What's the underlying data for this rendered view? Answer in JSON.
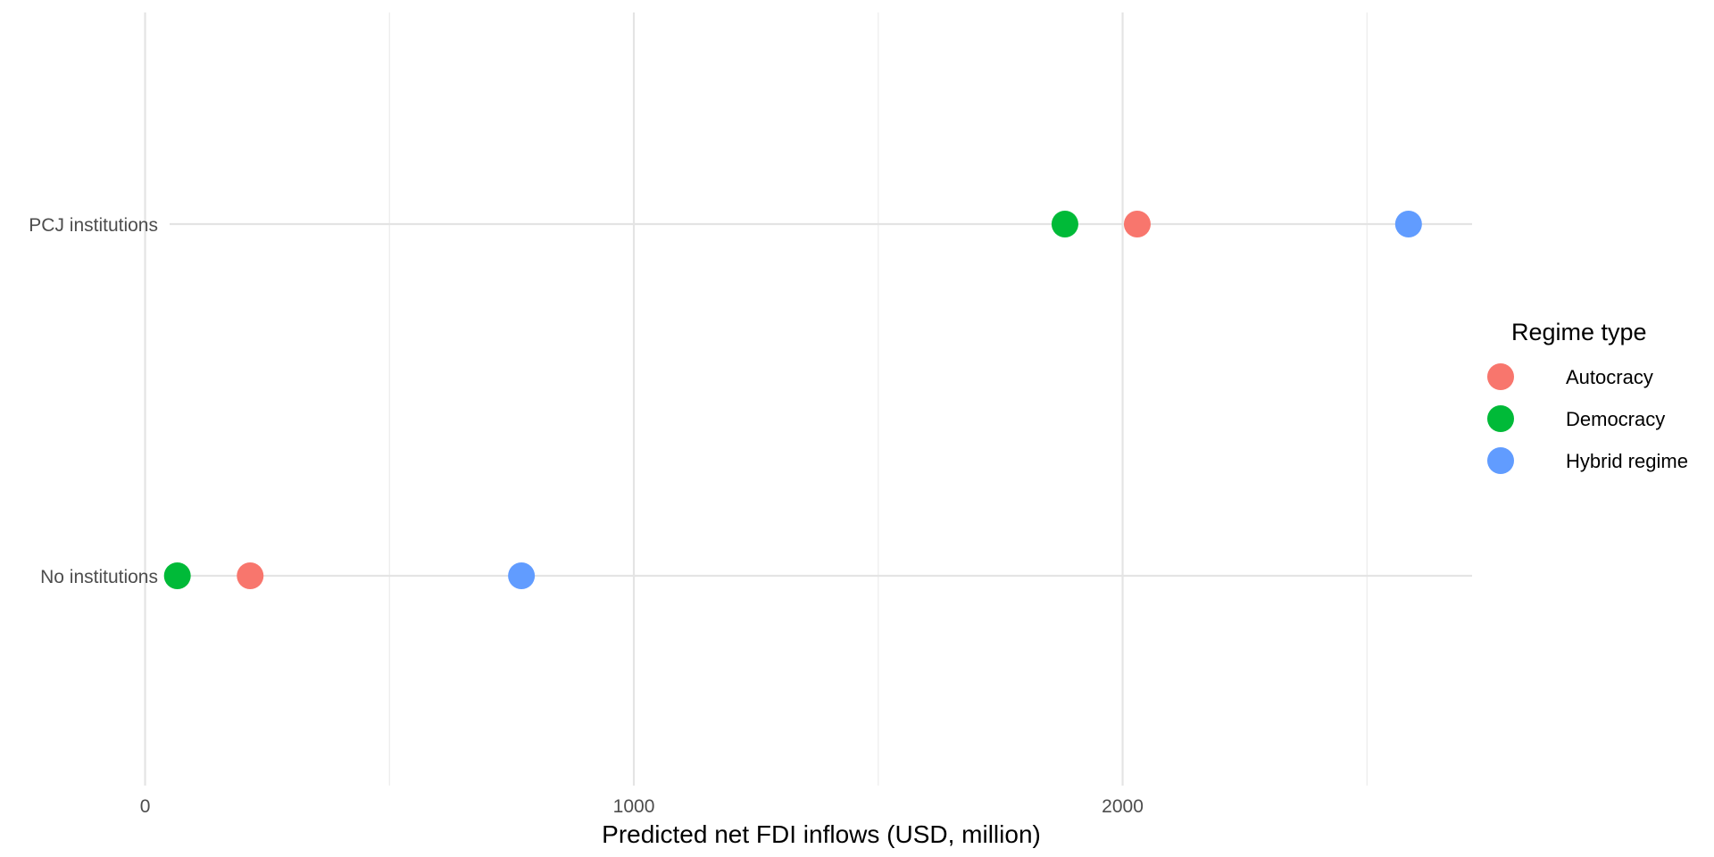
{
  "chart_data": {
    "type": "scatter",
    "title": "",
    "xlabel": "Predicted net FDI inflows (USD, million)",
    "ylabel": "",
    "xlim": [
      -85,
      2715
    ],
    "x_ticks": [
      0,
      1000,
      2000
    ],
    "x_tick_labels": [
      "0",
      "1000",
      "2000"
    ],
    "x_minor": [
      500,
      1500,
      2500
    ],
    "categories": [
      "No institutions",
      "PCJ institutions"
    ],
    "grid": true,
    "legend": {
      "title": "Regime type",
      "position": "right"
    },
    "series": [
      {
        "name": "Autocracy",
        "color": "#F8766D",
        "values": [
          {
            "y": "PCJ institutions",
            "x": 2030
          },
          {
            "y": "No institutions",
            "x": 215
          }
        ]
      },
      {
        "name": "Democracy",
        "color": "#00BA38",
        "values": [
          {
            "y": "PCJ institutions",
            "x": 1882
          },
          {
            "y": "No institutions",
            "x": 66
          }
        ]
      },
      {
        "name": "Hybrid regime",
        "color": "#619CFF",
        "values": [
          {
            "y": "PCJ institutions",
            "x": 2585
          },
          {
            "y": "No institutions",
            "x": 770
          }
        ]
      }
    ]
  }
}
